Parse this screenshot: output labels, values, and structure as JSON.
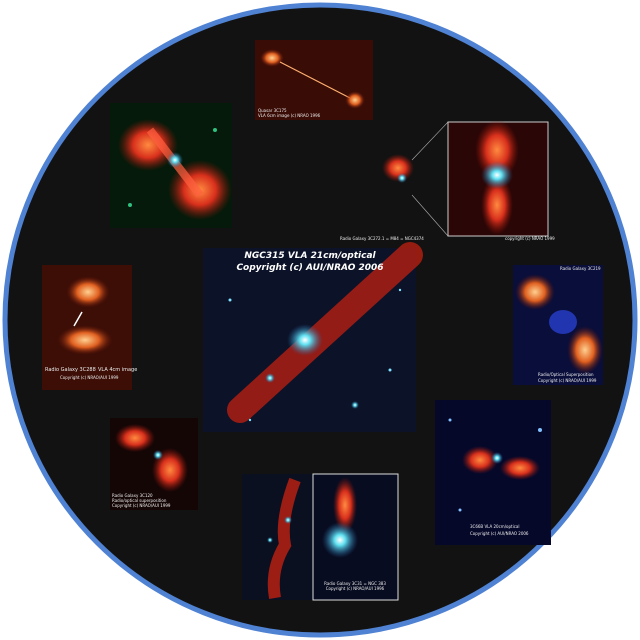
{
  "panels": [
    {
      "id": "quasar-3c175",
      "captions": [
        "Quasar 3C175",
        "VLA 6cm image (c) NRAO 1996"
      ]
    },
    {
      "id": "radio-galaxy-3c272",
      "captions": [
        "Radio Galaxy 3C272.1 = M84 = NGC4374",
        "copyright (c) NRAO 1999"
      ]
    },
    {
      "id": "radio-galaxy-3c288",
      "captions": [
        "Radio Galaxy 3C288",
        "VLA 4cm image",
        "Copyright (c) NRAO/AUI 1999"
      ]
    },
    {
      "id": "ngc315",
      "captions": [
        "NGC315 VLA 21cm/optical",
        "Copyright (c) AUI/NRAO 2006"
      ]
    },
    {
      "id": "radio-galaxy-3c219",
      "captions": [
        "Radio Galaxy 3C219",
        "Radio/Optical Superposition",
        "Copyright (c) NRAO/AUI 1999"
      ]
    },
    {
      "id": "radio-galaxy-3c120",
      "captions": [
        "Radio Galaxy 3C120",
        "Radio/optical superposition",
        "Copyright (c) NRAO/AUI 1999"
      ]
    },
    {
      "id": "radio-galaxy-3c31",
      "captions": [
        "Radio Galaxy 3C31 = NGC 383",
        "Copyright (c) NRAO/AUI 1996"
      ]
    },
    {
      "id": "3c66b",
      "captions": [
        "3C66B VLA 20cm/optical",
        "Copyright (c) AUI/NRAO 2006"
      ]
    }
  ]
}
